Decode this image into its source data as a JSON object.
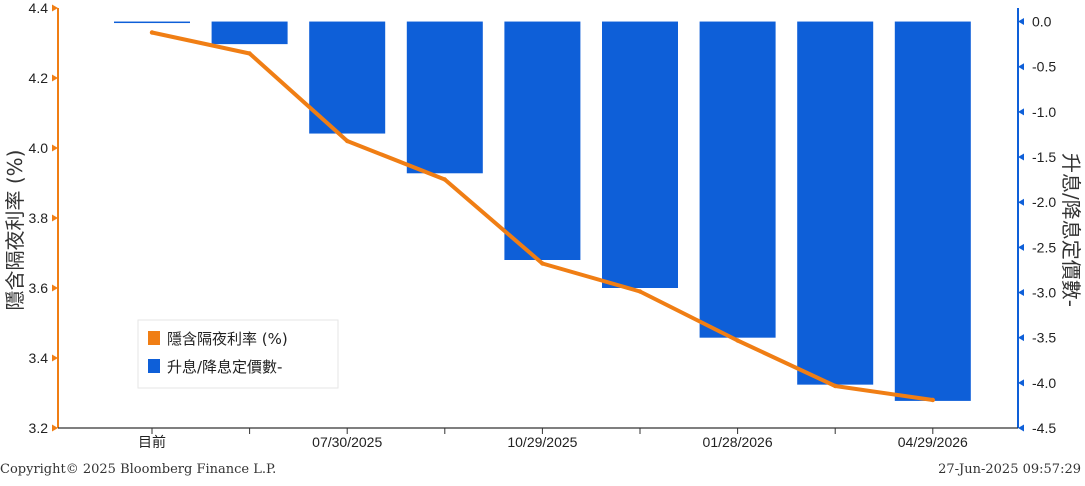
{
  "chart_data": {
    "type": "bar",
    "title": "",
    "categories": [
      "目前",
      "",
      "07/30/2025",
      "",
      "10/29/2025",
      "",
      "01/28/2026",
      "",
      "04/29/2026"
    ],
    "left_axis": {
      "label": "隱含隔夜利率 (%)",
      "ylim": [
        3.2,
        4.4
      ],
      "ticks": [
        3.2,
        3.4,
        3.6,
        3.8,
        4.0,
        4.2,
        4.4
      ],
      "color": "#f07e14"
    },
    "right_axis": {
      "label": "升息/降息定價數-",
      "ylim": [
        -4.5,
        0.15
      ],
      "ticks": [
        0.0,
        -0.5,
        -1.0,
        -1.5,
        -2.0,
        -2.5,
        -3.0,
        -3.5,
        -4.0,
        -4.5
      ],
      "color": "#0e5fd8"
    },
    "series": [
      {
        "name": "隱含隔夜利率 (%)",
        "type": "line",
        "axis": "left",
        "color": "#f07e14",
        "values": [
          4.33,
          4.27,
          4.02,
          3.91,
          3.67,
          3.59,
          3.45,
          3.32,
          3.28
        ]
      },
      {
        "name": "升息/降息定價數-",
        "type": "bar",
        "axis": "right",
        "color": "#0e5fd8",
        "values": [
          -0.01,
          -0.25,
          -1.24,
          -1.68,
          -2.64,
          -2.95,
          -3.5,
          -4.02,
          -4.2
        ]
      }
    ],
    "legend_position": "bottom-left",
    "grid": false
  },
  "footer": {
    "copyright": "Copyright© 2025 Bloomberg Finance L.P.",
    "timestamp": "27-Jun-2025 09:57:29"
  }
}
